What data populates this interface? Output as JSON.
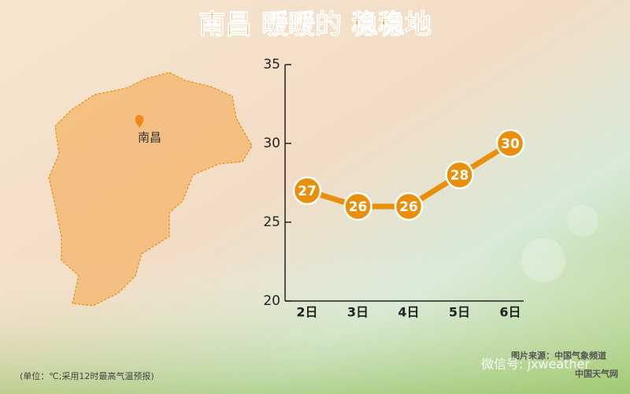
{
  "chart_data": {
    "type": "line",
    "title": "南昌 暖暖的 稳稳地",
    "categories": [
      "2日",
      "3日",
      "4日",
      "5日",
      "6日"
    ],
    "values": [
      27,
      26,
      26,
      28,
      30
    ],
    "color": "#e8900c",
    "ylim": [
      20,
      35
    ],
    "yticks": [
      20,
      25,
      30,
      35
    ],
    "map_label": "南昌",
    "note": "(单位：℃;采用12时最高气温预报)",
    "source": "图片来源：中国气象频道",
    "source_2": "中国天气网",
    "watermark": "微信号: jxweather"
  }
}
